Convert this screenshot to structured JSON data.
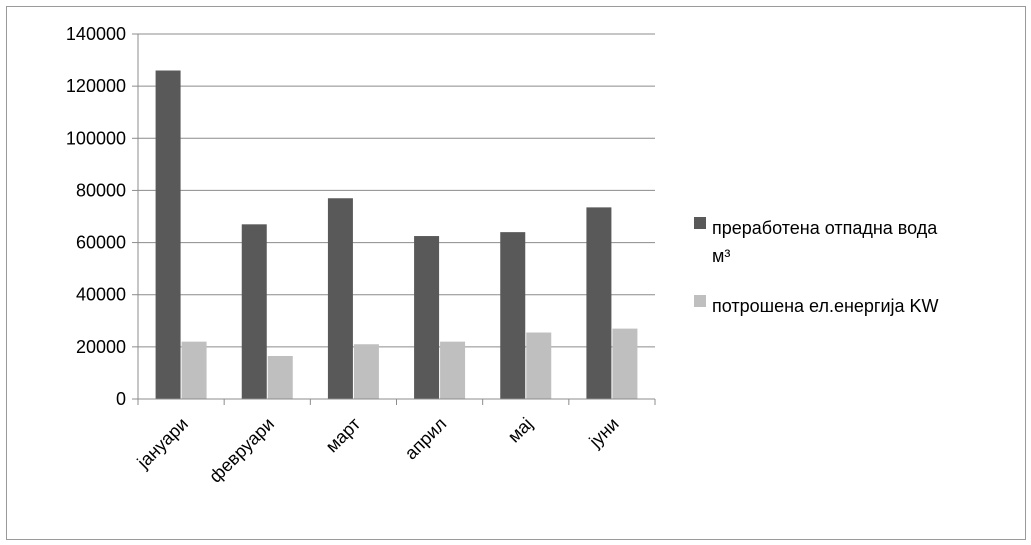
{
  "chart_data": {
    "type": "bar",
    "categories": [
      "јануари",
      "февруари",
      "март",
      "април",
      "мај",
      "јуни"
    ],
    "series": [
      {
        "name": "преработена отпадна вода м³",
        "legend_lines": [
          "преработена отпадна вода",
          "м³"
        ],
        "color": "#595959",
        "values": [
          126000,
          67000,
          77000,
          62500,
          64000,
          73500
        ]
      },
      {
        "name": "потрошена ел.енергија KW",
        "legend_lines": [
          "потрошена ел.енергија KW"
        ],
        "color": "#bfbfbf",
        "values": [
          22000,
          16500,
          21000,
          22000,
          25500,
          27000
        ]
      }
    ],
    "ylim": [
      0,
      140000
    ],
    "yticks": [
      0,
      20000,
      40000,
      60000,
      80000,
      100000,
      120000,
      140000
    ],
    "grid": true,
    "legend": "right",
    "axis_color": "#8c8c8c",
    "grid_color": "#8c8c8c"
  }
}
